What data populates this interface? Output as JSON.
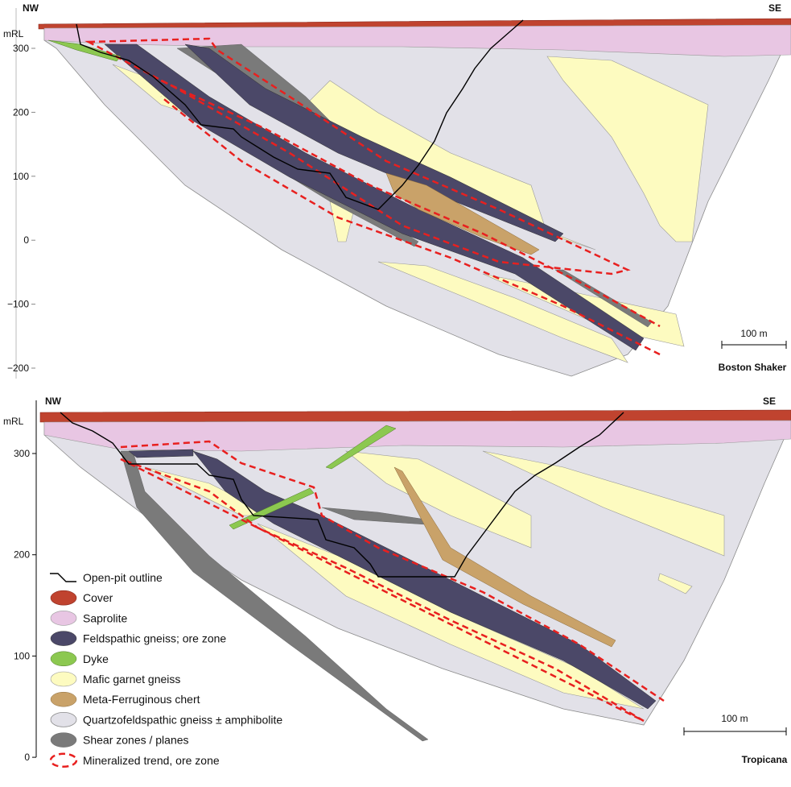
{
  "top_section": {
    "left_label": "NW",
    "right_label": "SE",
    "axis_label": "mRL",
    "axis_ticks": [
      "300",
      "200",
      "100",
      "0",
      "−100",
      "−200"
    ],
    "scale_bar": "100 m",
    "title": "Boston Shaker"
  },
  "bottom_section": {
    "left_label": "NW",
    "right_label": "SE",
    "axis_label": "mRL",
    "axis_ticks": [
      "300",
      "200",
      "100",
      "0"
    ],
    "scale_bar": "100 m",
    "title": "Tropicana"
  },
  "legend": [
    "Open-pit outline",
    "Cover",
    "Saprolite",
    "Feldspathic gneiss; ore zone",
    "Dyke",
    "Mafic garnet gneiss",
    "Meta-Ferruginous chert",
    "Quartzofeldspathic gneiss ± amphibolite",
    "Shear zones / planes",
    "Mineralized trend, ore zone"
  ]
}
